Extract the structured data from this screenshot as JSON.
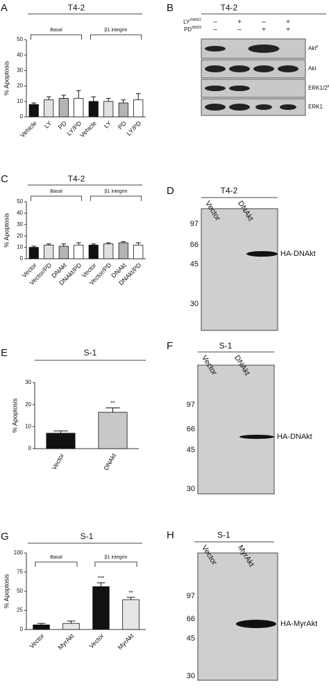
{
  "chart_data": [
    {
      "type": "bar",
      "panel": "A",
      "title": "T4-2",
      "y_label": "% Apoptosis",
      "categories": [
        "Vehicle",
        "LY",
        "PD",
        "LY/PD",
        "Vehicle",
        "LY",
        "PD",
        "LY/PD"
      ],
      "values": [
        8,
        11,
        12,
        12,
        10,
        10,
        9,
        11
      ],
      "errors": [
        1,
        2,
        2,
        5,
        3,
        2,
        2,
        4
      ],
      "colors": [
        "#111111",
        "#e0e0e0",
        "#b4b4b4",
        "#ffffff",
        "#111111",
        "#e0e0e0",
        "#b4b4b4",
        "#ffffff"
      ],
      "groups": [
        "Basal",
        "β1 integrin"
      ],
      "ylim": [
        0,
        50
      ],
      "yticks": [
        0,
        10,
        20,
        30,
        40,
        50
      ]
    },
    {
      "type": "bar",
      "panel": "C",
      "title": "T4-2",
      "y_label": "% Apoptosis",
      "categories": [
        "Vector",
        "Vector/PD",
        "DNAkt",
        "DNAkt/PD",
        "Vector",
        "Vector/PD",
        "DNAkt",
        "DNAkt/PD"
      ],
      "values": [
        10,
        12,
        11,
        12,
        12,
        13,
        14,
        12
      ],
      "errors": [
        1,
        1,
        2,
        2,
        1,
        1,
        1,
        2
      ],
      "colors": [
        "#111111",
        "#e0e0e0",
        "#b4b4b4",
        "#ffffff",
        "#111111",
        "#e0e0e0",
        "#b4b4b4",
        "#ffffff"
      ],
      "groups": [
        "Basal",
        "β1 integrin"
      ],
      "ylim": [
        0,
        50
      ],
      "yticks": [
        0,
        10,
        20,
        30,
        40,
        50
      ]
    },
    {
      "type": "bar",
      "panel": "E",
      "title": "S-1",
      "y_label": "% Apoptosis",
      "categories": [
        "Vector",
        "DNAkt"
      ],
      "values": [
        7,
        16.5
      ],
      "errors": [
        1,
        2
      ],
      "colors": [
        "#111111",
        "#c8c8c8"
      ],
      "annotations": [
        "**"
      ],
      "ylim": [
        0,
        30
      ],
      "yticks": [
        0,
        10,
        20,
        30
      ]
    },
    {
      "type": "bar",
      "panel": "G",
      "title": "S-1",
      "y_label": "% Apoptosis",
      "categories": [
        "Vector",
        "MyrAkt",
        "Vector",
        "MyrAkt"
      ],
      "values": [
        6,
        8,
        56,
        39
      ],
      "errors": [
        2,
        3,
        5,
        3
      ],
      "colors": [
        "#111111",
        "#e6e6e6",
        "#111111",
        "#e6e6e6"
      ],
      "annotations": [
        "***",
        "**"
      ],
      "groups": [
        "Basal",
        "β1 integrin"
      ],
      "ylim": [
        0,
        100
      ],
      "yticks": [
        0,
        25,
        50,
        75,
        100
      ]
    }
  ],
  "western": {
    "panel": "B",
    "title": "T4-2",
    "treatments": [
      {
        "name": "LY",
        "sup": "294002",
        "signs": [
          "–",
          "+",
          "–",
          "+"
        ]
      },
      {
        "name": "PD",
        "sup": "98059",
        "signs": [
          "–",
          "–",
          "+",
          "+"
        ]
      }
    ],
    "bands": [
      {
        "name": "Akt",
        "sup": "p"
      },
      {
        "name": "Akt"
      },
      {
        "name": "ERK1/2",
        "sup": "p"
      },
      {
        "name": "ERK1"
      }
    ]
  },
  "gels": [
    {
      "panel": "D",
      "title": "T4-2",
      "lanes": [
        "Vector",
        "DNAkt"
      ],
      "markers": [
        97,
        66,
        45,
        30
      ],
      "band": "HA-DNAkt"
    },
    {
      "panel": "F",
      "title": "S-1",
      "lanes": [
        "Vector",
        "DNAkt"
      ],
      "markers": [
        97,
        66,
        45,
        30
      ],
      "band": "HA-DNAkt"
    },
    {
      "panel": "H",
      "title": "S-1",
      "lanes": [
        "Vector",
        "MyrAkt"
      ],
      "markers": [
        97,
        66,
        45,
        30
      ],
      "band": "HA-MyrAkt"
    }
  ]
}
